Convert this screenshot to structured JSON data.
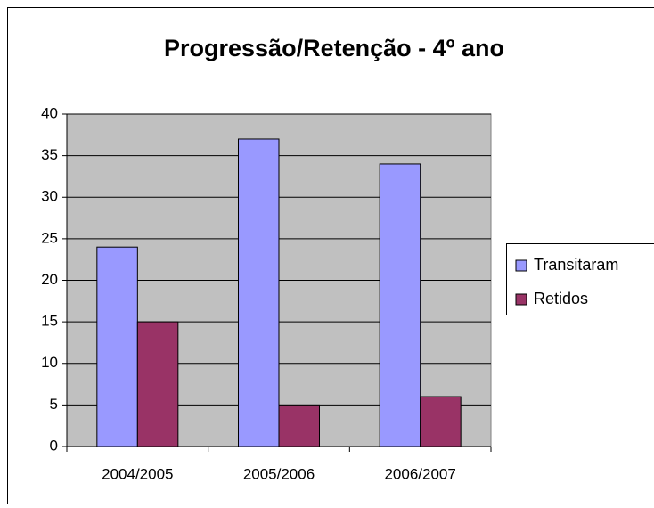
{
  "chart_data": {
    "type": "bar",
    "title": "Progressão/Retenção - 4º ano",
    "categories": [
      "2004/2005",
      "2005/2006",
      "2006/2007"
    ],
    "series": [
      {
        "name": "Transitaram",
        "color": "#9999ff",
        "values": [
          24,
          37,
          34
        ]
      },
      {
        "name": "Retidos",
        "color": "#993366",
        "values": [
          15,
          5,
          6
        ]
      }
    ],
    "ylim": [
      0,
      40
    ],
    "yticks": [
      0,
      5,
      10,
      15,
      20,
      25,
      30,
      35,
      40
    ],
    "grid": true,
    "legend": "right",
    "plot_background": "#c0c0c0"
  }
}
